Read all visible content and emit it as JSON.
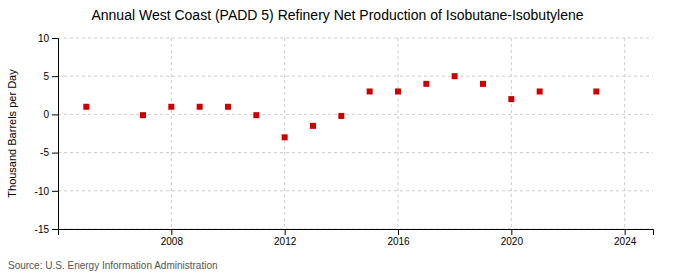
{
  "chart_data": {
    "type": "scatter",
    "title": "Annual West Coast (PADD 5) Refinery Net Production of Isobutane-Isobutylene",
    "ylabel": "Thousand Barrels per Day",
    "annotations": [
      "Source: U.S. Energy Information Administration"
    ],
    "x": [
      2005,
      2007,
      2008,
      2009,
      2010,
      2011,
      2012,
      2013,
      2014,
      2015,
      2016,
      2017,
      2018,
      2019,
      2020,
      2021,
      2023
    ],
    "values": [
      1.0,
      -0.1,
      1.0,
      1.0,
      1.0,
      -0.1,
      -3.0,
      -1.5,
      -0.2,
      3.0,
      3.0,
      4.0,
      5.0,
      4.0,
      2.0,
      3.0,
      3.0
    ],
    "color": "#cc0000",
    "marker": "square",
    "xlim": [
      2004,
      2025
    ],
    "ylim": [
      -15,
      10
    ],
    "xticks": [
      2008,
      2012,
      2016,
      2020,
      2024
    ],
    "yticks": [
      -15,
      -10,
      -5,
      0,
      5,
      10
    ],
    "grid": true
  }
}
